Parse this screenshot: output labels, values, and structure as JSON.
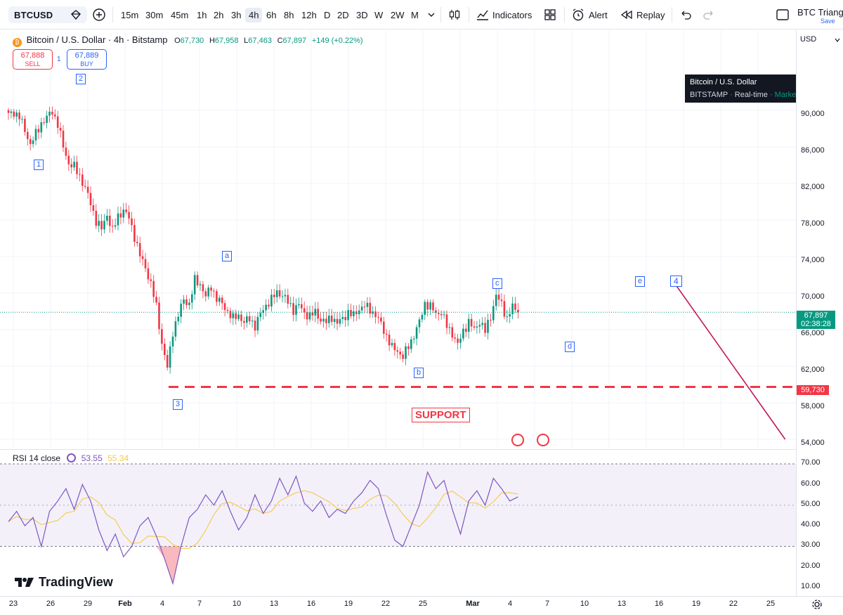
{
  "toolbar": {
    "symbol": "BTCUSD",
    "timeframes": [
      "15m",
      "30m",
      "45m",
      "1h",
      "2h",
      "3h",
      "4h",
      "6h",
      "8h",
      "12h",
      "D",
      "2D",
      "3D",
      "W",
      "2W",
      "M"
    ],
    "active_timeframe": "4h",
    "indicators_label": "Indicators",
    "alert_label": "Alert",
    "replay_label": "Replay",
    "layout_name": "BTC Triangl",
    "save_label": "Save"
  },
  "legend": {
    "title": "Bitcoin / U.S. Dollar · 4h · Bitstamp",
    "open_key": "O",
    "open": "67,730",
    "high_key": "H",
    "high": "67,958",
    "low_key": "L",
    "low": "67,463",
    "close_key": "C",
    "close": "67,897",
    "change": "+149 (+0.22%)"
  },
  "trade": {
    "sell_price": "67,888",
    "sell_label": "SELL",
    "buy_price": "67,889",
    "buy_label": "BUY",
    "spread": "1"
  },
  "info_popup": {
    "title": "Bitcoin / U.S. Dollar",
    "exchange": "BITSTAMP",
    "feed": "Real-time",
    "status": "Market open"
  },
  "price_axis": {
    "currency": "USD",
    "labels": [
      "90,000",
      "86,000",
      "82,000",
      "78,000",
      "74,000",
      "70,000",
      "66,000",
      "62,000",
      "58,000",
      "54,000"
    ],
    "current_price": "67,897",
    "countdown": "02:38:28",
    "support_price": "59,730"
  },
  "wave_labels": [
    "2",
    "1",
    "a",
    "3",
    "b",
    "c",
    "d",
    "e",
    "4"
  ],
  "support_text": "SUPPORT",
  "rsi": {
    "name": "RSI 14 close",
    "value": "53.55",
    "ma_value": "55.34",
    "labels": [
      "70.00",
      "60.00",
      "50.00",
      "40.00",
      "30.00",
      "20.00",
      "10.00"
    ]
  },
  "brand": "TradingView",
  "time_axis": {
    "labels": [
      "23",
      "26",
      "29",
      "Feb",
      "4",
      "7",
      "10",
      "13",
      "16",
      "19",
      "22",
      "25",
      "Mar",
      "4",
      "7",
      "10",
      "13",
      "16",
      "19",
      "22",
      "25"
    ]
  },
  "colors": {
    "up": "#089981",
    "down": "#f23645",
    "accent": "#2962ff",
    "rsi": "#7e57c2",
    "rsi_ma": "#f7c948"
  },
  "chart_data": {
    "type": "candlestick",
    "symbol": "BTCUSD",
    "interval": "4h",
    "exchange": "Bitstamp",
    "ylim": [
      53000,
      93000
    ],
    "close_path": [
      [
        0,
        89500
      ],
      [
        2,
        89800
      ],
      [
        4,
        89300
      ],
      [
        6,
        87800
      ],
      [
        8,
        86300
      ],
      [
        10,
        87400
      ],
      [
        12,
        88600
      ],
      [
        14,
        89200
      ],
      [
        16,
        89900
      ],
      [
        18,
        88500
      ],
      [
        20,
        86000
      ],
      [
        22,
        84200
      ],
      [
        24,
        83800
      ],
      [
        26,
        82800
      ],
      [
        28,
        81500
      ],
      [
        30,
        79800
      ],
      [
        32,
        77900
      ],
      [
        34,
        77000
      ],
      [
        36,
        78600
      ],
      [
        38,
        76800
      ],
      [
        40,
        78400
      ],
      [
        42,
        79100
      ],
      [
        44,
        78200
      ],
      [
        46,
        76200
      ],
      [
        48,
        74100
      ],
      [
        50,
        72800
      ],
      [
        52,
        71000
      ],
      [
        54,
        68500
      ],
      [
        56,
        64500
      ],
      [
        58,
        61800
      ],
      [
        60,
        65800
      ],
      [
        62,
        67600
      ],
      [
        64,
        69300
      ],
      [
        66,
        68800
      ],
      [
        68,
        71400
      ],
      [
        70,
        71000
      ],
      [
        72,
        69600
      ],
      [
        74,
        70700
      ],
      [
        76,
        69400
      ],
      [
        78,
        68800
      ],
      [
        80,
        68000
      ],
      [
        82,
        67200
      ],
      [
        84,
        67600
      ],
      [
        86,
        66800
      ],
      [
        88,
        67200
      ],
      [
        90,
        66400
      ],
      [
        92,
        67700
      ],
      [
        94,
        68700
      ],
      [
        96,
        69300
      ],
      [
        98,
        70100
      ],
      [
        100,
        69800
      ],
      [
        102,
        69000
      ],
      [
        104,
        68200
      ],
      [
        106,
        68700
      ],
      [
        108,
        67800
      ],
      [
        110,
        67500
      ],
      [
        112,
        67900
      ],
      [
        114,
        67100
      ],
      [
        116,
        66800
      ],
      [
        118,
        67400
      ],
      [
        120,
        66700
      ],
      [
        122,
        67200
      ],
      [
        124,
        67900
      ],
      [
        126,
        67500
      ],
      [
        128,
        68300
      ],
      [
        130,
        68600
      ],
      [
        132,
        68200
      ],
      [
        134,
        67600
      ],
      [
        136,
        66600
      ],
      [
        138,
        65300
      ],
      [
        140,
        64000
      ],
      [
        142,
        63700
      ],
      [
        144,
        63000
      ],
      [
        146,
        64200
      ],
      [
        148,
        65400
      ],
      [
        150,
        66800
      ],
      [
        152,
        68900
      ],
      [
        154,
        68500
      ],
      [
        156,
        67800
      ],
      [
        158,
        67900
      ],
      [
        160,
        66400
      ],
      [
        162,
        65600
      ],
      [
        164,
        64300
      ],
      [
        166,
        65900
      ],
      [
        168,
        66800
      ],
      [
        170,
        66000
      ],
      [
        172,
        66900
      ],
      [
        174,
        65800
      ],
      [
        176,
        67500
      ],
      [
        178,
        69700
      ],
      [
        180,
        68800
      ],
      [
        182,
        67200
      ],
      [
        184,
        68500
      ],
      [
        186,
        67900
      ]
    ],
    "support_level": 59730,
    "projection": {
      "from": [
        167,
        71500
      ],
      "to": [
        210,
        54000
      ]
    },
    "rsi_path": [
      [
        0,
        42
      ],
      [
        3,
        47
      ],
      [
        6,
        40
      ],
      [
        9,
        44
      ],
      [
        12,
        30
      ],
      [
        15,
        47
      ],
      [
        18,
        52
      ],
      [
        21,
        58
      ],
      [
        24,
        48
      ],
      [
        27,
        60
      ],
      [
        30,
        52
      ],
      [
        33,
        38
      ],
      [
        36,
        28
      ],
      [
        39,
        36
      ],
      [
        42,
        25
      ],
      [
        45,
        30
      ],
      [
        48,
        40
      ],
      [
        51,
        44
      ],
      [
        54,
        35
      ],
      [
        57,
        24
      ],
      [
        60,
        12
      ],
      [
        63,
        30
      ],
      [
        66,
        44
      ],
      [
        69,
        48
      ],
      [
        72,
        55
      ],
      [
        75,
        50
      ],
      [
        78,
        57
      ],
      [
        81,
        47
      ],
      [
        84,
        38
      ],
      [
        87,
        44
      ],
      [
        90,
        55
      ],
      [
        93,
        46
      ],
      [
        96,
        52
      ],
      [
        99,
        63
      ],
      [
        102,
        55
      ],
      [
        105,
        64
      ],
      [
        108,
        51
      ],
      [
        111,
        47
      ],
      [
        114,
        52
      ],
      [
        117,
        44
      ],
      [
        120,
        48
      ],
      [
        123,
        46
      ],
      [
        126,
        52
      ],
      [
        129,
        56
      ],
      [
        132,
        62
      ],
      [
        135,
        58
      ],
      [
        138,
        45
      ],
      [
        141,
        33
      ],
      [
        144,
        30
      ],
      [
        147,
        40
      ],
      [
        150,
        50
      ],
      [
        153,
        66
      ],
      [
        156,
        58
      ],
      [
        159,
        62
      ],
      [
        162,
        48
      ],
      [
        165,
        36
      ],
      [
        168,
        52
      ],
      [
        171,
        57
      ],
      [
        174,
        50
      ],
      [
        177,
        63
      ],
      [
        180,
        58
      ],
      [
        183,
        52
      ],
      [
        186,
        54
      ]
    ]
  }
}
